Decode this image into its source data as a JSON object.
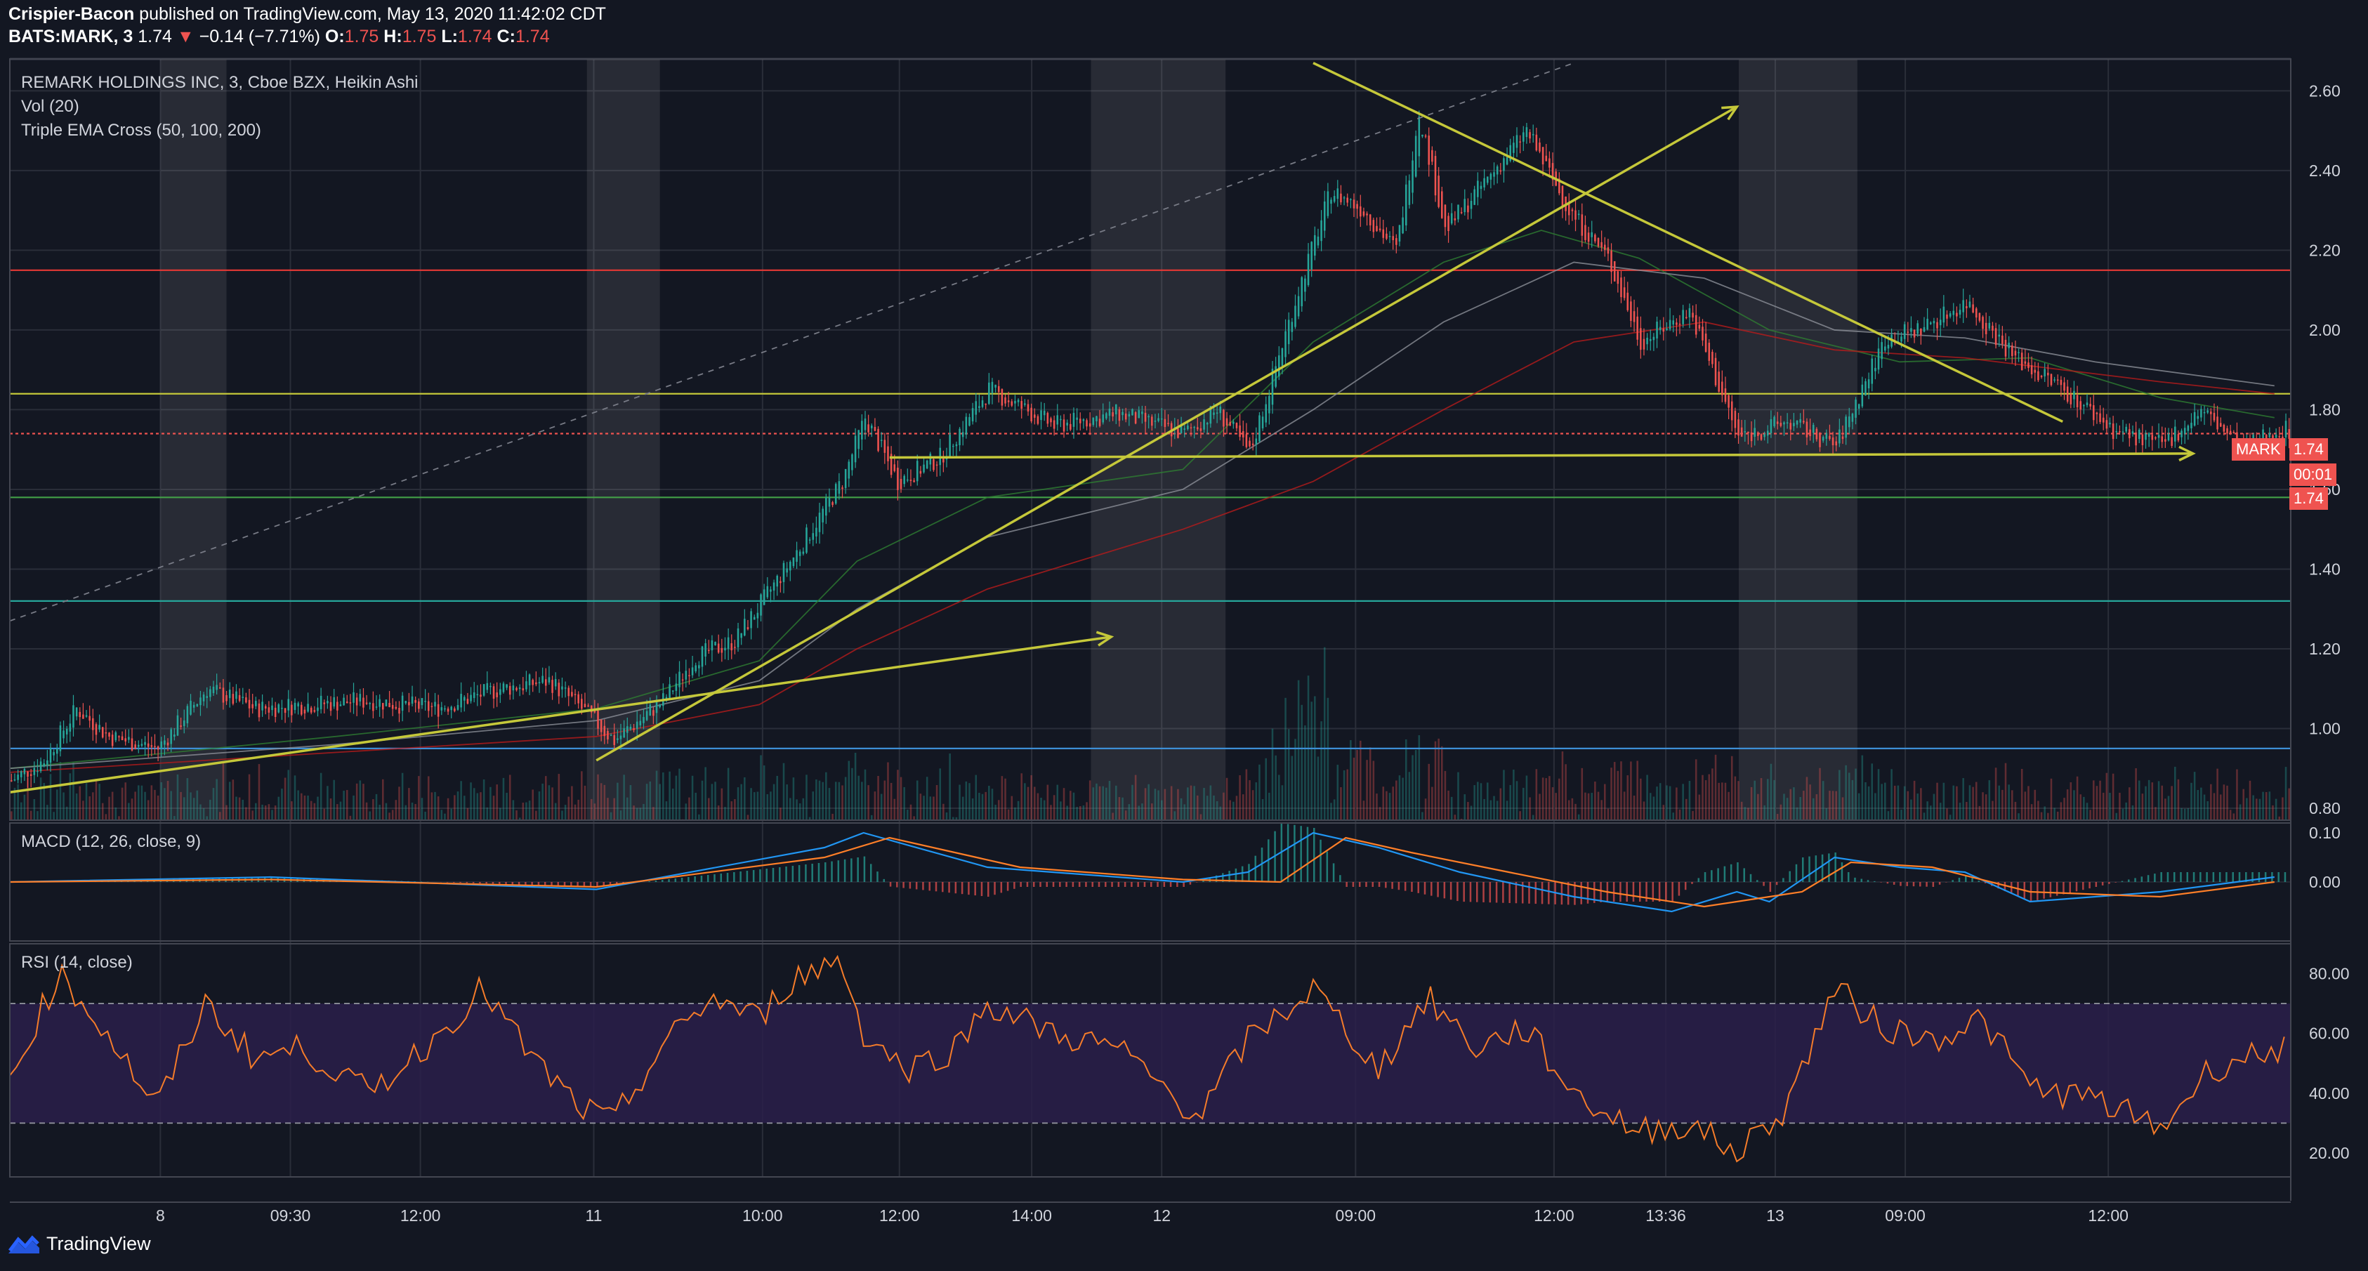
{
  "header": {
    "author": "Crispier-Bacon",
    "published_text": "published on TradingView.com, May 13, 2020 11:42:02 CDT",
    "symbol": "BATS:MARK, 3",
    "last": "1.74",
    "change": "−0.14 (−7.71%)",
    "o_label": "O:",
    "o": "1.75",
    "h_label": "H:",
    "h": "1.75",
    "l_label": "L:",
    "l": "1.74",
    "c_label": "C:",
    "c": "1.74"
  },
  "legends": {
    "main": "REMARK HOLDINGS INC, 3, Cboe BZX, Heikin Ashi",
    "vol": "Vol (20)",
    "ema": "Triple EMA Cross (50, 100, 200)",
    "macd": "MACD (12, 26, close, 9)",
    "rsi": "RSI (14, close)"
  },
  "tags": {
    "symbol": "MARK",
    "price": "1.74",
    "countdown": "00:01",
    "price2": "1.74"
  },
  "footer": {
    "brand": "TradingView"
  },
  "colors": {
    "background": "#131722",
    "up": "#26a69a",
    "down": "#ef5350",
    "trendline": "#c5c83a",
    "rsi_line": "#f57c2a",
    "macd_line": "#2196f3",
    "signal_line": "#ff7f28",
    "rsi_band": "#2a1f4a"
  },
  "chart_data": {
    "type": "candlestick",
    "style": "Heikin Ashi",
    "symbol": "MARK",
    "x_tick_labels": [
      "8",
      "09:30",
      "12:00",
      "11",
      "10:00",
      "12:00",
      "14:00",
      "12",
      "09:00",
      "12:00",
      "13:36",
      "13",
      "09:00",
      "12:00"
    ],
    "y_tick_labels": [
      "2.60",
      "2.40",
      "2.20",
      "2.00",
      "1.80",
      "1.60",
      "1.40",
      "1.20",
      "1.00",
      "0.80"
    ],
    "ylim": [
      0.77,
      2.68
    ],
    "price_path": [
      [
        0,
        0.87
      ],
      [
        10,
        0.92
      ],
      [
        20,
        1.05
      ],
      [
        30,
        0.98
      ],
      [
        45,
        0.95
      ],
      [
        60,
        1.1
      ],
      [
        75,
        1.05
      ],
      [
        90,
        1.06
      ],
      [
        110,
        1.07
      ],
      [
        130,
        1.05
      ],
      [
        150,
        1.1
      ],
      [
        165,
        1.12
      ],
      [
        175,
        1.05
      ],
      [
        185,
        0.97
      ],
      [
        200,
        1.07
      ],
      [
        210,
        1.18
      ],
      [
        222,
        1.22
      ],
      [
        240,
        1.43
      ],
      [
        255,
        1.62
      ],
      [
        262,
        1.78
      ],
      [
        272,
        1.62
      ],
      [
        285,
        1.68
      ],
      [
        300,
        1.85
      ],
      [
        320,
        1.76
      ],
      [
        340,
        1.79
      ],
      [
        360,
        1.74
      ],
      [
        370,
        1.8
      ],
      [
        380,
        1.69
      ],
      [
        395,
        2.1
      ],
      [
        405,
        2.35
      ],
      [
        415,
        2.3
      ],
      [
        425,
        2.2
      ],
      [
        432,
        2.55
      ],
      [
        440,
        2.25
      ],
      [
        455,
        2.4
      ],
      [
        465,
        2.5
      ],
      [
        478,
        2.3
      ],
      [
        490,
        2.18
      ],
      [
        500,
        1.97
      ],
      [
        515,
        2.05
      ],
      [
        530,
        1.73
      ],
      [
        545,
        1.77
      ],
      [
        560,
        1.71
      ],
      [
        575,
        1.98
      ],
      [
        585,
        2.0
      ],
      [
        600,
        2.07
      ],
      [
        615,
        1.93
      ],
      [
        630,
        1.85
      ],
      [
        645,
        1.75
      ],
      [
        660,
        1.71
      ],
      [
        672,
        1.8
      ],
      [
        685,
        1.7
      ],
      [
        695,
        1.75
      ]
    ],
    "ema_50": [
      [
        0,
        0.9
      ],
      [
        100,
        0.98
      ],
      [
        180,
        1.05
      ],
      [
        230,
        1.17
      ],
      [
        260,
        1.42
      ],
      [
        300,
        1.58
      ],
      [
        360,
        1.65
      ],
      [
        400,
        1.97
      ],
      [
        440,
        2.17
      ],
      [
        470,
        2.25
      ],
      [
        500,
        2.18
      ],
      [
        540,
        2.0
      ],
      [
        580,
        1.92
      ],
      [
        620,
        1.93
      ],
      [
        660,
        1.83
      ],
      [
        695,
        1.78
      ]
    ],
    "ema_100": [
      [
        0,
        0.9
      ],
      [
        100,
        0.96
      ],
      [
        180,
        1.02
      ],
      [
        230,
        1.12
      ],
      [
        260,
        1.3
      ],
      [
        300,
        1.48
      ],
      [
        360,
        1.6
      ],
      [
        400,
        1.8
      ],
      [
        440,
        2.02
      ],
      [
        480,
        2.17
      ],
      [
        520,
        2.13
      ],
      [
        560,
        2.0
      ],
      [
        600,
        1.98
      ],
      [
        640,
        1.92
      ],
      [
        695,
        1.86
      ]
    ],
    "ema_200": [
      [
        0,
        0.89
      ],
      [
        100,
        0.94
      ],
      [
        180,
        0.98
      ],
      [
        230,
        1.06
      ],
      [
        260,
        1.2
      ],
      [
        300,
        1.35
      ],
      [
        360,
        1.5
      ],
      [
        400,
        1.62
      ],
      [
        440,
        1.8
      ],
      [
        480,
        1.97
      ],
      [
        520,
        2.02
      ],
      [
        560,
        1.95
      ],
      [
        600,
        1.93
      ],
      [
        660,
        1.87
      ],
      [
        695,
        1.84
      ]
    ],
    "horizontal_levels": [
      {
        "price": 2.68,
        "color": "#b2b5be"
      },
      {
        "price": 2.15,
        "color": "#e53935"
      },
      {
        "price": 1.84,
        "color": "#c5c83a"
      },
      {
        "price": 1.74,
        "color": "#ef5350",
        "dashed": true
      },
      {
        "price": 1.58,
        "color": "#43a047"
      },
      {
        "price": 1.32,
        "color": "#26a69a"
      },
      {
        "price": 0.95,
        "color": "#3d8fd6"
      }
    ],
    "trendlines": [
      {
        "x1": 0,
        "y1": 0.84,
        "x2": 338,
        "y2": 1.23,
        "arrow": true
      },
      {
        "x1": 180,
        "y1": 0.92,
        "x2": 530,
        "y2": 2.56,
        "arrow": true
      },
      {
        "x1": 270,
        "y1": 1.68,
        "x2": 670,
        "y2": 1.69,
        "arrow": true
      },
      {
        "x1": 400,
        "y1": 2.67,
        "x2": 630,
        "y2": 1.77,
        "arrow": false
      },
      {
        "x1": 0,
        "y1": 1.27,
        "x2": 480,
        "y2": 2.67,
        "dashed": true
      }
    ],
    "macd": {
      "ylim": [
        -0.12,
        0.12
      ],
      "y_tick_labels": [
        "0.10",
        "0.00"
      ],
      "macd_line": [
        [
          0,
          0
        ],
        [
          80,
          0.01
        ],
        [
          180,
          -0.015
        ],
        [
          250,
          0.07
        ],
        [
          262,
          0.1
        ],
        [
          300,
          0.03
        ],
        [
          340,
          0.01
        ],
        [
          360,
          0
        ],
        [
          380,
          0.02
        ],
        [
          400,
          0.1
        ],
        [
          420,
          0.07
        ],
        [
          445,
          0.02
        ],
        [
          480,
          -0.03
        ],
        [
          510,
          -0.06
        ],
        [
          530,
          -0.02
        ],
        [
          540,
          -0.04
        ],
        [
          560,
          0.05
        ],
        [
          580,
          0.03
        ],
        [
          600,
          0.02
        ],
        [
          620,
          -0.04
        ],
        [
          660,
          -0.02
        ],
        [
          695,
          0.01
        ]
      ],
      "signal_line": [
        [
          0,
          0
        ],
        [
          80,
          0.005
        ],
        [
          180,
          -0.01
        ],
        [
          250,
          0.05
        ],
        [
          270,
          0.09
        ],
        [
          310,
          0.03
        ],
        [
          360,
          0.005
        ],
        [
          390,
          0.0
        ],
        [
          410,
          0.09
        ],
        [
          430,
          0.06
        ],
        [
          460,
          0.02
        ],
        [
          490,
          -0.02
        ],
        [
          520,
          -0.05
        ],
        [
          550,
          -0.02
        ],
        [
          565,
          0.04
        ],
        [
          590,
          0.03
        ],
        [
          620,
          -0.02
        ],
        [
          660,
          -0.03
        ],
        [
          695,
          0.0
        ]
      ]
    },
    "rsi": {
      "ylim": [
        12,
        90
      ],
      "bands": [
        30,
        70
      ],
      "y_tick_labels": [
        "80.00",
        "60.00",
        "40.00",
        "20.00"
      ],
      "values": [
        [
          0,
          45
        ],
        [
          15,
          80
        ],
        [
          30,
          60
        ],
        [
          45,
          35
        ],
        [
          60,
          70
        ],
        [
          75,
          52
        ],
        [
          90,
          55
        ],
        [
          110,
          40
        ],
        [
          130,
          58
        ],
        [
          145,
          75
        ],
        [
          160,
          52
        ],
        [
          175,
          35
        ],
        [
          185,
          30
        ],
        [
          200,
          55
        ],
        [
          215,
          72
        ],
        [
          230,
          65
        ],
        [
          240,
          78
        ],
        [
          255,
          85
        ],
        [
          262,
          60
        ],
        [
          275,
          48
        ],
        [
          290,
          55
        ],
        [
          300,
          70
        ],
        [
          320,
          60
        ],
        [
          340,
          55
        ],
        [
          365,
          32
        ],
        [
          380,
          58
        ],
        [
          400,
          75
        ],
        [
          420,
          48
        ],
        [
          435,
          72
        ],
        [
          450,
          55
        ],
        [
          465,
          62
        ],
        [
          480,
          40
        ],
        [
          500,
          27
        ],
        [
          515,
          30
        ],
        [
          530,
          20
        ],
        [
          545,
          35
        ],
        [
          560,
          75
        ],
        [
          575,
          62
        ],
        [
          590,
          58
        ],
        [
          605,
          65
        ],
        [
          620,
          42
        ],
        [
          640,
          38
        ],
        [
          660,
          28
        ],
        [
          675,
          48
        ],
        [
          695,
          55
        ]
      ]
    },
    "x_domain": [
      0,
      700
    ]
  }
}
